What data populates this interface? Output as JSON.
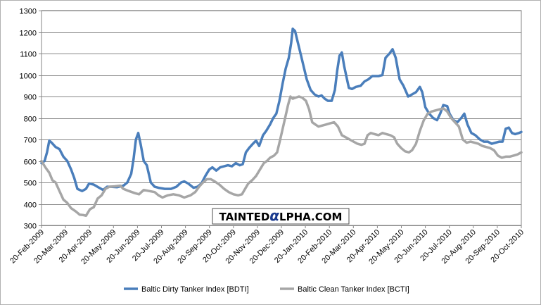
{
  "chart_data": {
    "type": "line",
    "title": "",
    "xlabel": "",
    "ylabel": "",
    "ylim": [
      300,
      1300
    ],
    "yticks": [
      300,
      400,
      500,
      600,
      700,
      800,
      900,
      1000,
      1100,
      1200,
      1300
    ],
    "x_tick_labels": [
      "20-Feb-2009",
      "20-Mar-2009",
      "20-Apr-2009",
      "20-May-2009",
      "20-Jun-2009",
      "20-Jul-2009",
      "20-Aug-2009",
      "20-Sep-2009",
      "20-Oct-2009",
      "20-Nov-2009",
      "20-Dec-2009",
      "20-Jan-2010",
      "20-Feb-2010",
      "20-Mar-2010",
      "20-Apr-2010",
      "20-May-2010",
      "20-Jun-2010",
      "20-Jul-2010",
      "20-Aug-2010",
      "20-Sep-2010",
      "20-Oct-2010"
    ],
    "grid": "horizontal",
    "legend_position": "bottom",
    "watermark": "TAINTEDALPHA.COM",
    "series": [
      {
        "name": "Baltic Dirty Tanker Index [BDTI]",
        "color": "#4a7ebb",
        "points": [
          [
            "2009-02-20",
            590
          ],
          [
            "2009-02-24",
            600
          ],
          [
            "2009-02-27",
            640
          ],
          [
            "2009-03-02",
            695
          ],
          [
            "2009-03-05",
            685
          ],
          [
            "2009-03-10",
            665
          ],
          [
            "2009-03-15",
            655
          ],
          [
            "2009-03-20",
            620
          ],
          [
            "2009-03-25",
            600
          ],
          [
            "2009-03-30",
            560
          ],
          [
            "2009-04-03",
            520
          ],
          [
            "2009-04-07",
            470
          ],
          [
            "2009-04-13",
            460
          ],
          [
            "2009-04-18",
            470
          ],
          [
            "2009-04-22",
            495
          ],
          [
            "2009-04-28",
            490
          ],
          [
            "2009-05-05",
            475
          ],
          [
            "2009-05-10",
            465
          ],
          [
            "2009-05-15",
            480
          ],
          [
            "2009-05-20",
            480
          ],
          [
            "2009-05-28",
            478
          ],
          [
            "2009-06-05",
            485
          ],
          [
            "2009-06-10",
            500
          ],
          [
            "2009-06-15",
            540
          ],
          [
            "2009-06-18",
            610
          ],
          [
            "2009-06-21",
            700
          ],
          [
            "2009-06-24",
            730
          ],
          [
            "2009-06-27",
            680
          ],
          [
            "2009-07-01",
            600
          ],
          [
            "2009-07-05",
            580
          ],
          [
            "2009-07-10",
            500
          ],
          [
            "2009-07-15",
            480
          ],
          [
            "2009-07-20",
            475
          ],
          [
            "2009-07-28",
            470
          ],
          [
            "2009-08-05",
            470
          ],
          [
            "2009-08-12",
            480
          ],
          [
            "2009-08-18",
            500
          ],
          [
            "2009-08-22",
            505
          ],
          [
            "2009-08-27",
            495
          ],
          [
            "2009-09-03",
            475
          ],
          [
            "2009-09-08",
            480
          ],
          [
            "2009-09-13",
            495
          ],
          [
            "2009-09-18",
            530
          ],
          [
            "2009-09-23",
            560
          ],
          [
            "2009-09-27",
            570
          ],
          [
            "2009-10-02",
            555
          ],
          [
            "2009-10-07",
            570
          ],
          [
            "2009-10-12",
            575
          ],
          [
            "2009-10-17",
            580
          ],
          [
            "2009-10-22",
            575
          ],
          [
            "2009-10-27",
            590
          ],
          [
            "2009-11-01",
            580
          ],
          [
            "2009-11-05",
            585
          ],
          [
            "2009-11-09",
            640
          ],
          [
            "2009-11-13",
            660
          ],
          [
            "2009-11-18",
            680
          ],
          [
            "2009-11-22",
            695
          ],
          [
            "2009-11-26",
            670
          ],
          [
            "2009-12-01",
            720
          ],
          [
            "2009-12-05",
            740
          ],
          [
            "2009-12-10",
            770
          ],
          [
            "2009-12-14",
            800
          ],
          [
            "2009-12-18",
            820
          ],
          [
            "2009-12-22",
            880
          ],
          [
            "2009-12-26",
            960
          ],
          [
            "2009-12-30",
            1030
          ],
          [
            "2010-01-03",
            1080
          ],
          [
            "2010-01-06",
            1150
          ],
          [
            "2010-01-08",
            1215
          ],
          [
            "2010-01-11",
            1205
          ],
          [
            "2010-01-14",
            1160
          ],
          [
            "2010-01-18",
            1100
          ],
          [
            "2010-01-22",
            1040
          ],
          [
            "2010-01-26",
            980
          ],
          [
            "2010-01-31",
            930
          ],
          [
            "2010-02-05",
            910
          ],
          [
            "2010-02-10",
            900
          ],
          [
            "2010-02-14",
            905
          ],
          [
            "2010-02-18",
            890
          ],
          [
            "2010-02-22",
            880
          ],
          [
            "2010-02-27",
            880
          ],
          [
            "2010-03-03",
            930
          ],
          [
            "2010-03-06",
            1020
          ],
          [
            "2010-03-09",
            1090
          ],
          [
            "2010-03-12",
            1105
          ],
          [
            "2010-03-15",
            1040
          ],
          [
            "2010-03-18",
            990
          ],
          [
            "2010-03-21",
            940
          ],
          [
            "2010-03-25",
            935
          ],
          [
            "2010-03-30",
            945
          ],
          [
            "2010-04-05",
            950
          ],
          [
            "2010-04-10",
            970
          ],
          [
            "2010-04-15",
            980
          ],
          [
            "2010-04-20",
            995
          ],
          [
            "2010-04-28",
            995
          ],
          [
            "2010-05-03",
            1000
          ],
          [
            "2010-05-07",
            1080
          ],
          [
            "2010-05-12",
            1100
          ],
          [
            "2010-05-16",
            1120
          ],
          [
            "2010-05-20",
            1080
          ],
          [
            "2010-05-25",
            980
          ],
          [
            "2010-05-30",
            950
          ],
          [
            "2010-06-05",
            900
          ],
          [
            "2010-06-10",
            910
          ],
          [
            "2010-06-15",
            920
          ],
          [
            "2010-06-20",
            945
          ],
          [
            "2010-06-23",
            920
          ],
          [
            "2010-06-27",
            850
          ],
          [
            "2010-07-02",
            820
          ],
          [
            "2010-07-07",
            800
          ],
          [
            "2010-07-12",
            790
          ],
          [
            "2010-07-16",
            820
          ],
          [
            "2010-07-20",
            860
          ],
          [
            "2010-07-25",
            855
          ],
          [
            "2010-07-28",
            820
          ],
          [
            "2010-08-02",
            790
          ],
          [
            "2010-08-07",
            780
          ],
          [
            "2010-08-12",
            800
          ],
          [
            "2010-08-16",
            820
          ],
          [
            "2010-08-20",
            770
          ],
          [
            "2010-08-25",
            730
          ],
          [
            "2010-08-30",
            720
          ],
          [
            "2010-09-05",
            700
          ],
          [
            "2010-09-10",
            690
          ],
          [
            "2010-09-15",
            690
          ],
          [
            "2010-09-20",
            680
          ],
          [
            "2010-09-25",
            685
          ],
          [
            "2010-09-30",
            690
          ],
          [
            "2010-10-04",
            690
          ],
          [
            "2010-10-08",
            750
          ],
          [
            "2010-10-12",
            755
          ],
          [
            "2010-10-16",
            730
          ],
          [
            "2010-10-20",
            725
          ],
          [
            "2010-10-25",
            730
          ],
          [
            "2010-10-28",
            735
          ]
        ]
      },
      {
        "name": "Baltic Clean Tanker Index [BCTI]",
        "color": "#a6a6a6",
        "points": [
          [
            "2009-02-20",
            600
          ],
          [
            "2009-02-25",
            570
          ],
          [
            "2009-03-02",
            545
          ],
          [
            "2009-03-06",
            510
          ],
          [
            "2009-03-10",
            500
          ],
          [
            "2009-03-15",
            460
          ],
          [
            "2009-03-20",
            420
          ],
          [
            "2009-03-25",
            405
          ],
          [
            "2009-03-30",
            380
          ],
          [
            "2009-04-05",
            365
          ],
          [
            "2009-04-10",
            350
          ],
          [
            "2009-04-15",
            348
          ],
          [
            "2009-04-18",
            345
          ],
          [
            "2009-04-23",
            375
          ],
          [
            "2009-04-28",
            385
          ],
          [
            "2009-05-03",
            425
          ],
          [
            "2009-05-08",
            440
          ],
          [
            "2009-05-13",
            470
          ],
          [
            "2009-05-18",
            480
          ],
          [
            "2009-05-25",
            482
          ],
          [
            "2009-06-01",
            485
          ],
          [
            "2009-06-05",
            470
          ],
          [
            "2009-06-12",
            460
          ],
          [
            "2009-06-20",
            450
          ],
          [
            "2009-06-25",
            445
          ],
          [
            "2009-07-01",
            465
          ],
          [
            "2009-07-08",
            460
          ],
          [
            "2009-07-15",
            455
          ],
          [
            "2009-07-20",
            440
          ],
          [
            "2009-07-25",
            430
          ],
          [
            "2009-08-01",
            440
          ],
          [
            "2009-08-08",
            445
          ],
          [
            "2009-08-15",
            440
          ],
          [
            "2009-08-22",
            430
          ],
          [
            "2009-08-30",
            440
          ],
          [
            "2009-09-05",
            455
          ],
          [
            "2009-09-10",
            480
          ],
          [
            "2009-09-15",
            500
          ],
          [
            "2009-09-20",
            515
          ],
          [
            "2009-09-25",
            515
          ],
          [
            "2009-09-30",
            505
          ],
          [
            "2009-10-06",
            490
          ],
          [
            "2009-10-12",
            470
          ],
          [
            "2009-10-18",
            455
          ],
          [
            "2009-10-24",
            445
          ],
          [
            "2009-10-30",
            440
          ],
          [
            "2009-11-04",
            445
          ],
          [
            "2009-11-08",
            470
          ],
          [
            "2009-11-12",
            495
          ],
          [
            "2009-11-17",
            510
          ],
          [
            "2009-11-22",
            530
          ],
          [
            "2009-11-27",
            560
          ],
          [
            "2009-12-02",
            590
          ],
          [
            "2009-12-06",
            600
          ],
          [
            "2009-12-10",
            615
          ],
          [
            "2009-12-15",
            625
          ],
          [
            "2009-12-19",
            640
          ],
          [
            "2009-12-23",
            700
          ],
          [
            "2009-12-28",
            780
          ],
          [
            "2010-01-02",
            860
          ],
          [
            "2010-01-05",
            900
          ],
          [
            "2010-01-08",
            890
          ],
          [
            "2010-01-12",
            895
          ],
          [
            "2010-01-16",
            900
          ],
          [
            "2010-01-20",
            895
          ],
          [
            "2010-01-25",
            880
          ],
          [
            "2010-01-29",
            840
          ],
          [
            "2010-02-02",
            780
          ],
          [
            "2010-02-06",
            770
          ],
          [
            "2010-02-10",
            760
          ],
          [
            "2010-02-15",
            765
          ],
          [
            "2010-02-20",
            770
          ],
          [
            "2010-02-25",
            775
          ],
          [
            "2010-03-02",
            780
          ],
          [
            "2010-03-07",
            760
          ],
          [
            "2010-03-12",
            720
          ],
          [
            "2010-03-17",
            710
          ],
          [
            "2010-03-22",
            700
          ],
          [
            "2010-03-27",
            690
          ],
          [
            "2010-04-01",
            680
          ],
          [
            "2010-04-06",
            675
          ],
          [
            "2010-04-10",
            680
          ],
          [
            "2010-04-14",
            720
          ],
          [
            "2010-04-18",
            730
          ],
          [
            "2010-04-23",
            725
          ],
          [
            "2010-04-28",
            720
          ],
          [
            "2010-05-03",
            730
          ],
          [
            "2010-05-08",
            725
          ],
          [
            "2010-05-13",
            720
          ],
          [
            "2010-05-18",
            710
          ],
          [
            "2010-05-22",
            680
          ],
          [
            "2010-05-27",
            660
          ],
          [
            "2010-06-01",
            645
          ],
          [
            "2010-06-06",
            640
          ],
          [
            "2010-06-10",
            650
          ],
          [
            "2010-06-15",
            680
          ],
          [
            "2010-06-20",
            740
          ],
          [
            "2010-06-25",
            790
          ],
          [
            "2010-06-30",
            820
          ],
          [
            "2010-07-05",
            830
          ],
          [
            "2010-07-10",
            835
          ],
          [
            "2010-07-15",
            840
          ],
          [
            "2010-07-20",
            845
          ],
          [
            "2010-07-25",
            830
          ],
          [
            "2010-07-30",
            800
          ],
          [
            "2010-08-04",
            780
          ],
          [
            "2010-08-09",
            760
          ],
          [
            "2010-08-14",
            700
          ],
          [
            "2010-08-19",
            685
          ],
          [
            "2010-08-24",
            690
          ],
          [
            "2010-08-29",
            685
          ],
          [
            "2010-09-03",
            680
          ],
          [
            "2010-09-08",
            670
          ],
          [
            "2010-09-13",
            665
          ],
          [
            "2010-09-18",
            660
          ],
          [
            "2010-09-23",
            650
          ],
          [
            "2010-09-28",
            625
          ],
          [
            "2010-10-03",
            615
          ],
          [
            "2010-10-08",
            620
          ],
          [
            "2010-10-13",
            620
          ],
          [
            "2010-10-18",
            625
          ],
          [
            "2010-10-23",
            630
          ],
          [
            "2010-10-28",
            640
          ]
        ]
      }
    ]
  }
}
